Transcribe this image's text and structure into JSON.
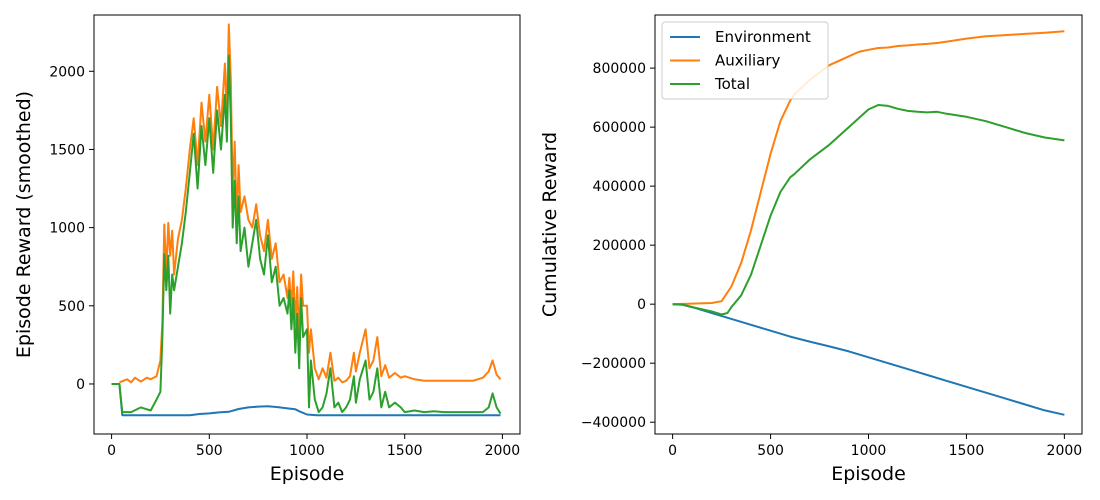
{
  "chart_data": [
    {
      "type": "line",
      "xlabel": "Episode",
      "ylabel": "Episode Reward (smoothed)",
      "xlim": [
        -90,
        2090
      ],
      "ylim": [
        -320,
        2360
      ],
      "xticks": [
        0,
        500,
        1000,
        1500,
        2000
      ],
      "xtick_labels": [
        "0",
        "500",
        "1000",
        "1500",
        "2000"
      ],
      "yticks": [
        0,
        500,
        1000,
        1500,
        2000
      ],
      "ytick_labels": [
        "0",
        "500",
        "1000",
        "1500",
        "2000"
      ],
      "grid": false,
      "legend": false,
      "series": [
        {
          "color": "#1f77b4",
          "x": [
            0,
            40,
            55,
            100,
            200,
            300,
            400,
            450,
            500,
            550,
            600,
            650,
            700,
            750,
            800,
            850,
            900,
            940,
            970,
            1000,
            1050,
            1100,
            1200,
            1300,
            1400,
            1500,
            1600,
            1700,
            1800,
            1900,
            1990
          ],
          "y": [
            0,
            0,
            -200,
            -200,
            -200,
            -200,
            -200,
            -192,
            -188,
            -182,
            -178,
            -160,
            -150,
            -145,
            -142,
            -148,
            -156,
            -162,
            -180,
            -195,
            -200,
            -200,
            -200,
            -200,
            -200,
            -200,
            -200,
            -200,
            -200,
            -200,
            -200
          ]
        },
        {
          "color": "#ff7f0e",
          "x": [
            40,
            60,
            80,
            100,
            120,
            150,
            180,
            200,
            230,
            250,
            260,
            270,
            280,
            290,
            300,
            310,
            320,
            340,
            360,
            380,
            400,
            420,
            440,
            460,
            480,
            500,
            520,
            540,
            560,
            580,
            590,
            600,
            610,
            620,
            630,
            640,
            650,
            660,
            680,
            700,
            720,
            740,
            760,
            780,
            800,
            820,
            840,
            860,
            880,
            900,
            910,
            920,
            930,
            940,
            950,
            960,
            970,
            980,
            1000,
            1010,
            1020,
            1040,
            1060,
            1080,
            1100,
            1120,
            1140,
            1160,
            1180,
            1200,
            1220,
            1240,
            1250,
            1270,
            1300,
            1320,
            1340,
            1360,
            1380,
            1400,
            1420,
            1450,
            1480,
            1500,
            1550,
            1600,
            1650,
            1700,
            1750,
            1800,
            1850,
            1900,
            1930,
            1950,
            1970,
            1990
          ],
          "y": [
            10,
            20,
            30,
            10,
            40,
            15,
            40,
            30,
            50,
            150,
            400,
            1020,
            700,
            1030,
            820,
            980,
            700,
            930,
            1050,
            1250,
            1500,
            1700,
            1400,
            1800,
            1550,
            1850,
            1500,
            1900,
            1650,
            2050,
            1700,
            2300,
            1950,
            1200,
            1550,
            1050,
            1400,
            1100,
            1200,
            1050,
            1000,
            1150,
            950,
            850,
            1050,
            800,
            900,
            650,
            700,
            550,
            680,
            480,
            720,
            380,
            620,
            300,
            700,
            500,
            500,
            200,
            350,
            100,
            30,
            100,
            40,
            200,
            20,
            40,
            10,
            20,
            50,
            200,
            80,
            200,
            350,
            100,
            150,
            300,
            50,
            120,
            40,
            70,
            40,
            50,
            30,
            20,
            20,
            20,
            20,
            20,
            20,
            40,
            80,
            150,
            60,
            30
          ]
        },
        {
          "color": "#2ca02c",
          "x": [
            0,
            40,
            55,
            100,
            150,
            200,
            230,
            250,
            260,
            270,
            280,
            290,
            300,
            310,
            320,
            340,
            360,
            380,
            400,
            420,
            440,
            460,
            480,
            500,
            520,
            540,
            560,
            580,
            590,
            600,
            610,
            620,
            630,
            640,
            650,
            660,
            680,
            700,
            720,
            740,
            760,
            780,
            800,
            820,
            840,
            860,
            880,
            900,
            910,
            920,
            930,
            940,
            950,
            960,
            970,
            980,
            1000,
            1010,
            1020,
            1040,
            1060,
            1080,
            1100,
            1120,
            1140,
            1160,
            1180,
            1200,
            1220,
            1240,
            1250,
            1270,
            1300,
            1320,
            1340,
            1360,
            1380,
            1400,
            1420,
            1450,
            1480,
            1500,
            1550,
            1600,
            1650,
            1700,
            1750,
            1800,
            1850,
            1900,
            1930,
            1950,
            1970,
            1990
          ],
          "y": [
            0,
            0,
            -180,
            -180,
            -150,
            -170,
            -100,
            -50,
            300,
            830,
            600,
            820,
            450,
            700,
            600,
            750,
            900,
            1100,
            1350,
            1600,
            1250,
            1650,
            1400,
            1700,
            1350,
            1750,
            1500,
            1850,
            1550,
            2100,
            1700,
            1000,
            1300,
            900,
            1200,
            850,
            1000,
            750,
            900,
            1050,
            800,
            700,
            950,
            650,
            750,
            500,
            550,
            450,
            600,
            350,
            550,
            200,
            450,
            100,
            550,
            300,
            350,
            -150,
            150,
            -100,
            -180,
            -150,
            -60,
            100,
            -150,
            -120,
            -180,
            -150,
            -100,
            50,
            -120,
            30,
            150,
            -100,
            -50,
            100,
            -150,
            -50,
            -150,
            -120,
            -150,
            -180,
            -170,
            -180,
            -175,
            -180,
            -180,
            -180,
            -180,
            -180,
            -150,
            -60,
            -150,
            -190
          ]
        }
      ]
    },
    {
      "type": "line",
      "xlabel": "Episode",
      "ylabel": "Cumulative Reward",
      "xlim": [
        -90,
        2090
      ],
      "ylim": [
        -440000,
        980000
      ],
      "xticks": [
        0,
        500,
        1000,
        1500,
        2000
      ],
      "xtick_labels": [
        "0",
        "500",
        "1000",
        "1500",
        "2000"
      ],
      "yticks": [
        -400000,
        -200000,
        0,
        200000,
        400000,
        600000,
        800000
      ],
      "ytick_labels": [
        "−400000",
        "−200000",
        "0",
        "200000",
        "400000",
        "600000",
        "800000"
      ],
      "grid": false,
      "legend": "top-left",
      "series": [
        {
          "name": "Environment",
          "color": "#1f77b4",
          "x": [
            0,
            50,
            100,
            200,
            300,
            400,
            500,
            600,
            700,
            800,
            900,
            1000,
            1100,
            1200,
            1300,
            1400,
            1500,
            1600,
            1700,
            1800,
            1900,
            2000
          ],
          "y": [
            0,
            -2000,
            -10000,
            -30000,
            -50000,
            -70000,
            -90000,
            -110000,
            -127000,
            -143000,
            -160000,
            -180000,
            -200000,
            -220000,
            -240000,
            -260000,
            -280000,
            -300000,
            -320000,
            -340000,
            -360000,
            -375000
          ]
        },
        {
          "name": "Auxiliary",
          "color": "#ff7f0e",
          "x": [
            0,
            50,
            100,
            200,
            250,
            300,
            350,
            400,
            450,
            500,
            550,
            600,
            620,
            700,
            800,
            900,
            950,
            1000,
            1050,
            1100,
            1150,
            1200,
            1250,
            1300,
            1350,
            1400,
            1500,
            1600,
            1700,
            1800,
            1900,
            2000
          ],
          "y": [
            0,
            1000,
            2000,
            4000,
            10000,
            60000,
            140000,
            250000,
            380000,
            510000,
            620000,
            690000,
            710000,
            760000,
            810000,
            840000,
            855000,
            862000,
            868000,
            870000,
            875000,
            877000,
            880000,
            882000,
            885000,
            890000,
            900000,
            908000,
            912000,
            916000,
            920000,
            925000
          ]
        },
        {
          "name": "Total",
          "color": "#2ca02c",
          "x": [
            0,
            50,
            100,
            200,
            250,
            280,
            300,
            350,
            400,
            450,
            500,
            550,
            600,
            620,
            700,
            800,
            900,
            950,
            1000,
            1050,
            1100,
            1150,
            1200,
            1250,
            1300,
            1350,
            1400,
            1500,
            1600,
            1700,
            1800,
            1900,
            2000
          ],
          "y": [
            0,
            -1000,
            -10000,
            -25000,
            -35000,
            -30000,
            -10000,
            30000,
            100000,
            200000,
            300000,
            380000,
            430000,
            440000,
            490000,
            540000,
            600000,
            630000,
            660000,
            675000,
            672000,
            662000,
            655000,
            652000,
            650000,
            652000,
            645000,
            635000,
            620000,
            600000,
            580000,
            565000,
            555000
          ]
        }
      ]
    }
  ]
}
